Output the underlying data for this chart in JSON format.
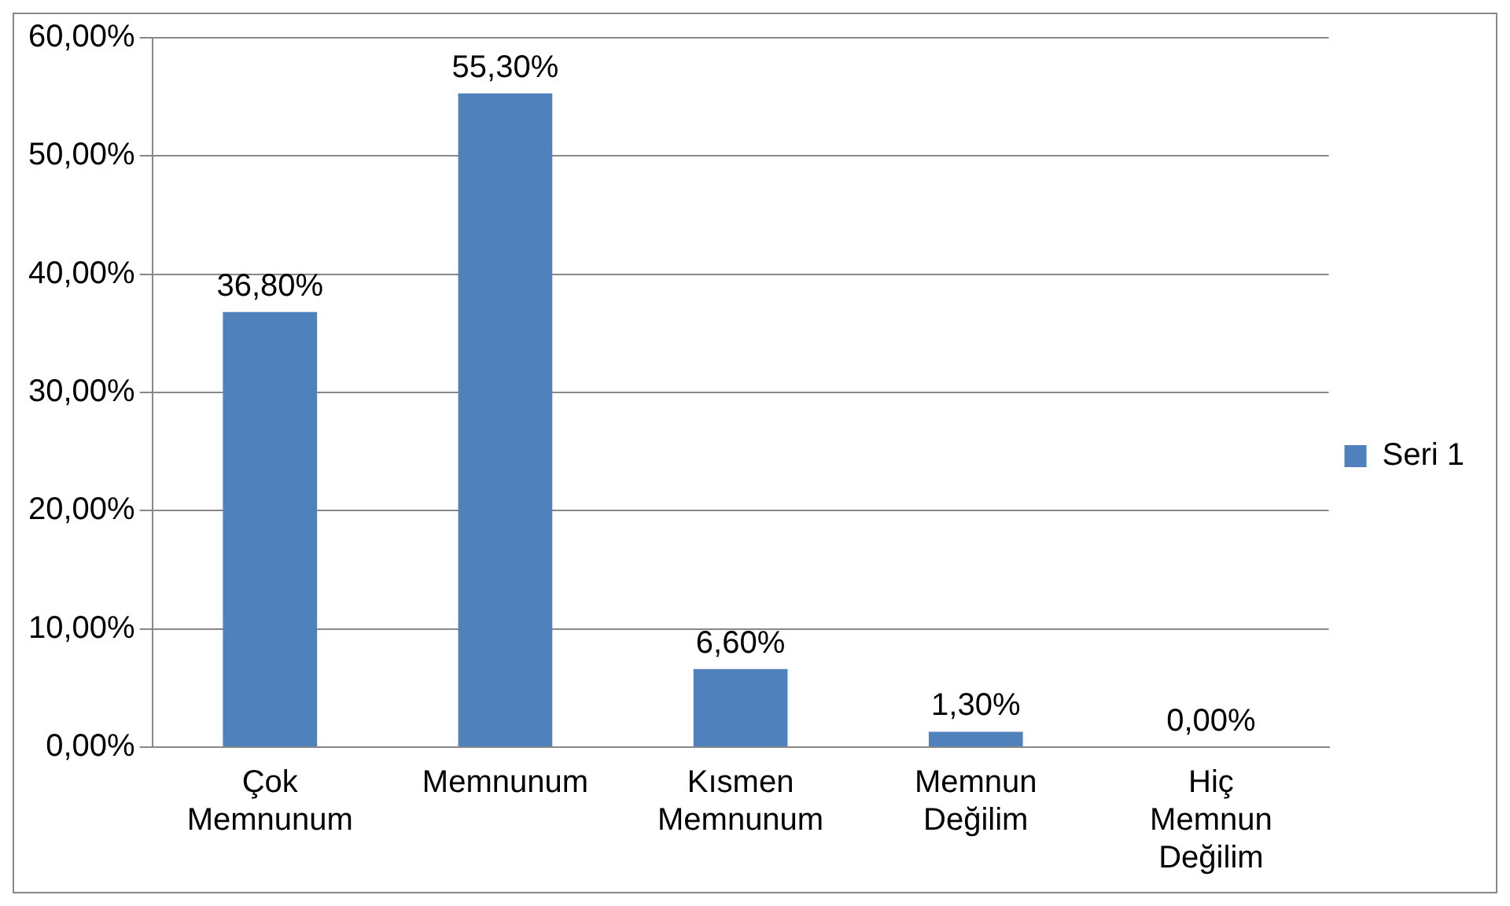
{
  "chart_data": {
    "type": "bar",
    "categories": [
      "Çok Memnunum",
      "Memnunum",
      "Kısmen Memnunum",
      "Memnun Değilim",
      "Hiç Memnun Değilim"
    ],
    "series": [
      {
        "name": "Seri 1",
        "color": "#4f81bd",
        "values": [
          36.8,
          55.3,
          6.6,
          1.3,
          0
        ],
        "value_labels": [
          "36,80%",
          "55,30%",
          "6,60%",
          "1,30%",
          "0,00%"
        ]
      }
    ],
    "ylim": [
      0,
      60
    ],
    "yticks": [
      {
        "value": 0,
        "label": "0,00%"
      },
      {
        "value": 10,
        "label": "10,00%"
      },
      {
        "value": 20,
        "label": "20,00%"
      },
      {
        "value": 30,
        "label": "30,00%"
      },
      {
        "value": 40,
        "label": "40,00%"
      },
      {
        "value": 50,
        "label": "50,00%"
      },
      {
        "value": 60,
        "label": "60,00%"
      }
    ],
    "grid": "y",
    "legend": "right"
  }
}
